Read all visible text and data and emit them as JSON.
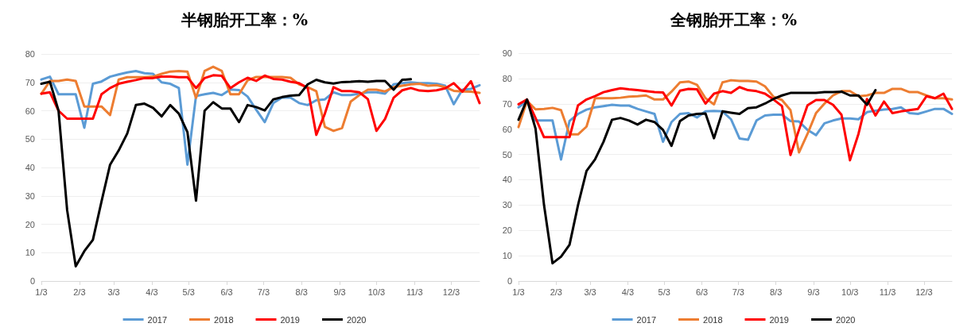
{
  "chart_data": [
    {
      "type": "line",
      "title": "半钢胎开工率：%",
      "x": [
        "--01-03",
        "--01-10",
        "--01-17",
        "--01-24",
        "--01-31",
        "--02-07",
        "--02-14",
        "--02-21",
        "--02-28",
        "--03-07",
        "--03-14",
        "--03-21",
        "--03-28",
        "--04-04",
        "--04-11",
        "--04-18",
        "--04-25",
        "--05-02",
        "--05-09",
        "--05-16",
        "--05-23",
        "--05-30",
        "--06-06",
        "--06-13",
        "--06-20",
        "--06-27",
        "--07-04",
        "--07-11",
        "--07-18",
        "--07-25",
        "--08-01",
        "--08-08",
        "--08-15",
        "--08-22",
        "--08-29",
        "--09-05",
        "--09-12",
        "--09-19",
        "--09-26",
        "--10-03",
        "--10-10",
        "--10-17",
        "--10-24",
        "--10-31",
        "--11-07",
        "--11-14",
        "--11-21",
        "--11-28",
        "--12-05",
        "--12-12",
        "--12-19",
        "--12-26"
      ],
      "xlim": [
        "--01-03",
        "--12-26"
      ],
      "xticks": [
        {
          "value": "--01-03",
          "label": "1/3"
        },
        {
          "value": "--02-03",
          "label": "2/3"
        },
        {
          "value": "--03-03",
          "label": "3/3"
        },
        {
          "value": "--04-03",
          "label": "4/3"
        },
        {
          "value": "--05-03",
          "label": "5/3"
        },
        {
          "value": "--06-03",
          "label": "6/3"
        },
        {
          "value": "--07-03",
          "label": "7/3"
        },
        {
          "value": "--08-03",
          "label": "8/3"
        },
        {
          "value": "--09-03",
          "label": "9/3"
        },
        {
          "value": "--10-03",
          "label": "10/3"
        },
        {
          "value": "--11-03",
          "label": "11/3"
        },
        {
          "value": "--12-03",
          "label": "12/3"
        }
      ],
      "ylim": [
        0,
        80
      ],
      "yticks": [
        0,
        10,
        20,
        30,
        40,
        50,
        60,
        70,
        80
      ],
      "grid": "y",
      "legend": "bottom",
      "marker": "none",
      "line_style": "solid",
      "series": [
        {
          "name": "2017",
          "color": "#5b9bd5",
          "values": [
            71,
            72,
            65.8,
            65.8,
            65.8,
            54,
            69.5,
            70.3,
            72,
            72.8,
            73.5,
            74,
            73.2,
            73,
            70,
            69.5,
            68,
            41,
            65.2,
            65.8,
            66.3,
            65.5,
            67.5,
            67.3,
            65,
            60.4,
            56,
            62.7,
            64.6,
            64.6,
            62.7,
            62,
            63.7,
            64,
            66.5,
            65.5,
            65.5,
            66,
            66.5,
            66.5,
            66,
            69.3,
            69.7,
            70,
            69.7,
            69.7,
            69.5,
            68.8,
            62.3,
            67.4,
            67.7,
            69
          ]
        },
        {
          "name": "2018",
          "color": "#ed7d31",
          "values": [
            66,
            70.5,
            70.5,
            71,
            70.5,
            61.5,
            61.5,
            61.5,
            58.5,
            71,
            71.8,
            71.8,
            71.8,
            72,
            73,
            73.8,
            74,
            73.8,
            64.5,
            74,
            75.5,
            74,
            65.8,
            65.8,
            70.7,
            71.9,
            71.9,
            71.9,
            71.9,
            71.6,
            69.3,
            68.3,
            66.9,
            54.3,
            52.9,
            53.9,
            63.2,
            65.5,
            67.4,
            67.4,
            66.8,
            68.3,
            68.8,
            69.3,
            69.5,
            68.8,
            69,
            68.3,
            67,
            66.8,
            66.7,
            66.3
          ]
        },
        {
          "name": "2019",
          "color": "#ff0000",
          "values": [
            66,
            66.5,
            60,
            57.2,
            57.2,
            57.2,
            57.2,
            65.8,
            68,
            69.5,
            70.2,
            70.8,
            71.5,
            71.5,
            72,
            72,
            71.8,
            71.8,
            68,
            71.5,
            72.5,
            72.3,
            68,
            70,
            71.6,
            70.5,
            72.4,
            71.2,
            71,
            70.2,
            69.7,
            68,
            51.5,
            59,
            68.3,
            66.9,
            66.9,
            66.5,
            64.1,
            52.9,
            57.1,
            64.6,
            67.2,
            68,
            67.1,
            66.9,
            67.2,
            67.9,
            69.7,
            66.7,
            70.4,
            62.7
          ]
        },
        {
          "name": "2020",
          "color": "#000000",
          "values": [
            69.5,
            70.2,
            60,
            25,
            5.2,
            10.5,
            14.5,
            28,
            41,
            46,
            52,
            62,
            62.5,
            61,
            58,
            62,
            59,
            52.5,
            28.3,
            60,
            63,
            60.8,
            60.8,
            56,
            62,
            61.3,
            60.1,
            64,
            64.8,
            65.3,
            65.5,
            69.3,
            70.9,
            70,
            69.6,
            70.1,
            70.2,
            70.4,
            70.2,
            70.5,
            70.5,
            67.4,
            70.9,
            71.1,
            null,
            null,
            null,
            null,
            null,
            null,
            null,
            null
          ]
        }
      ]
    },
    {
      "type": "line",
      "title": "全钢胎开工率：%",
      "x": [
        "--01-03",
        "--01-10",
        "--01-17",
        "--01-24",
        "--01-31",
        "--02-07",
        "--02-14",
        "--02-21",
        "--02-28",
        "--03-07",
        "--03-14",
        "--03-21",
        "--03-28",
        "--04-04",
        "--04-11",
        "--04-18",
        "--04-25",
        "--05-02",
        "--05-09",
        "--05-16",
        "--05-23",
        "--05-30",
        "--06-06",
        "--06-13",
        "--06-20",
        "--06-27",
        "--07-04",
        "--07-11",
        "--07-18",
        "--07-25",
        "--08-01",
        "--08-08",
        "--08-15",
        "--08-22",
        "--08-29",
        "--09-05",
        "--09-12",
        "--09-19",
        "--09-26",
        "--10-03",
        "--10-10",
        "--10-17",
        "--10-24",
        "--10-31",
        "--11-07",
        "--11-14",
        "--11-21",
        "--11-28",
        "--12-05",
        "--12-12",
        "--12-19",
        "--12-26"
      ],
      "xlim": [
        "--01-03",
        "--12-26"
      ],
      "xticks": [
        {
          "value": "--01-03",
          "label": "1/3"
        },
        {
          "value": "--02-03",
          "label": "2/3"
        },
        {
          "value": "--03-03",
          "label": "3/3"
        },
        {
          "value": "--04-03",
          "label": "4/3"
        },
        {
          "value": "--05-03",
          "label": "5/3"
        },
        {
          "value": "--06-03",
          "label": "6/3"
        },
        {
          "value": "--07-03",
          "label": "7/3"
        },
        {
          "value": "--08-03",
          "label": "8/3"
        },
        {
          "value": "--09-03",
          "label": "9/3"
        },
        {
          "value": "--10-03",
          "label": "10/3"
        },
        {
          "value": "--11-03",
          "label": "11/3"
        },
        {
          "value": "--12-03",
          "label": "12/3"
        }
      ],
      "ylim": [
        0,
        90
      ],
      "yticks": [
        0,
        10,
        20,
        30,
        40,
        50,
        60,
        70,
        80,
        90
      ],
      "grid": "y",
      "legend": "bottom",
      "marker": "none",
      "line_style": "solid",
      "series": [
        {
          "name": "2017",
          "color": "#5b9bd5",
          "values": [
            68.6,
            71.2,
            63.4,
            63.4,
            63.4,
            48,
            63.2,
            66,
            67.7,
            68.6,
            69.1,
            69.6,
            69.3,
            69.3,
            68,
            67,
            66,
            55,
            62.8,
            66,
            66.3,
            64.6,
            67,
            67.2,
            67,
            63.9,
            56.3,
            55.8,
            63.4,
            65.4,
            65.7,
            65.7,
            63.2,
            63,
            59.7,
            57.6,
            62.3,
            63.4,
            64.2,
            64.2,
            63.9,
            66.7,
            67.3,
            67.7,
            68,
            68.6,
            66.3,
            66,
            67,
            68,
            68,
            66
          ]
        },
        {
          "name": "2018",
          "color": "#ed7d31",
          "values": [
            60.8,
            71.2,
            67.8,
            68,
            68.4,
            67.5,
            57.9,
            57.9,
            61,
            72.2,
            72.2,
            72.2,
            72.4,
            72.8,
            73,
            73.3,
            71.7,
            71.7,
            74.8,
            78.5,
            78.8,
            77.5,
            72.2,
            69.8,
            78.5,
            79.3,
            79,
            79,
            78.8,
            76.9,
            72.8,
            71.5,
            67.5,
            50.8,
            58.1,
            66.3,
            70.1,
            73.3,
            75,
            75,
            73,
            73.3,
            74.3,
            74.3,
            75.9,
            75.9,
            74.6,
            74.6,
            73.3,
            72.2,
            72.2,
            71.7
          ]
        },
        {
          "name": "2019",
          "color": "#ff0000",
          "values": [
            69.8,
            71.7,
            64.4,
            56.8,
            56.8,
            56.8,
            56.8,
            69.4,
            71.7,
            73,
            74.6,
            75.4,
            76.1,
            75.7,
            75.4,
            75,
            74.6,
            74.5,
            69.3,
            75.2,
            75.9,
            75.7,
            70.1,
            74,
            75,
            74.3,
            76.6,
            75.4,
            75,
            74,
            71.7,
            69.1,
            49.8,
            59.7,
            69.4,
            71.5,
            71.5,
            69.6,
            65.7,
            47.7,
            58.1,
            71.9,
            65.4,
            70.9,
            66.3,
            67,
            67.5,
            68,
            73,
            72.2,
            74,
            68
          ]
        },
        {
          "name": "2020",
          "color": "#000000",
          "values": [
            63.7,
            71.7,
            60.2,
            30,
            7,
            9.6,
            14.3,
            30,
            43.5,
            48,
            55,
            63.7,
            64.4,
            63.4,
            61.8,
            63.7,
            62.8,
            59.7,
            53.4,
            63.2,
            65.4,
            66,
            66.2,
            56.4,
            67,
            66.5,
            66,
            68.3,
            68.6,
            70.1,
            71.9,
            73.3,
            74.3,
            74.3,
            74.3,
            74.3,
            74.6,
            74.6,
            74.8,
            73.3,
            73.3,
            69.6,
            75.4,
            null,
            null,
            null,
            null,
            null,
            null,
            null,
            null,
            null
          ]
        }
      ]
    }
  ]
}
